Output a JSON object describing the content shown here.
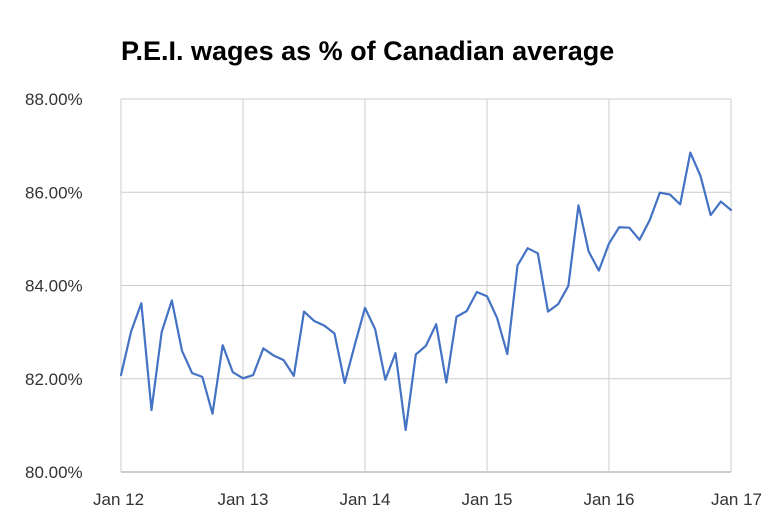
{
  "chart_data": {
    "type": "line",
    "title": "P.E.I. wages as % of Canadian average",
    "xlabel": "",
    "ylabel": "",
    "ylim": [
      80,
      88
    ],
    "y_ticks": [
      "80.00%",
      "82.00%",
      "84.00%",
      "86.00%",
      "88.00%"
    ],
    "y_tick_values": [
      80,
      82,
      84,
      86,
      88
    ],
    "x_ticks": [
      "Jan 12",
      "Jan 13",
      "Jan 14",
      "Jan 15",
      "Jan 16",
      "Jan 17"
    ],
    "x_tick_positions": [
      0,
      12,
      24,
      36,
      48,
      60
    ],
    "grid": true,
    "legend": "none",
    "series": [
      {
        "color": "#4472C4",
        "x": [
          0,
          1,
          2,
          3,
          4,
          5,
          6,
          7,
          8,
          9,
          10,
          11,
          12,
          13,
          14,
          15,
          16,
          17,
          18,
          19,
          20,
          21,
          22,
          23,
          24,
          25,
          26,
          27,
          28,
          29,
          30,
          31,
          32,
          33,
          34,
          35,
          36,
          37,
          38,
          39,
          40,
          41,
          42,
          43,
          44,
          45,
          46,
          47,
          48,
          49,
          50,
          51,
          52,
          53,
          54,
          55,
          56,
          57,
          58,
          59,
          60
        ],
        "values": [
          82.08,
          83.02,
          83.62,
          81.33,
          83.0,
          83.68,
          82.6,
          82.12,
          82.04,
          81.25,
          82.72,
          82.14,
          82.01,
          82.08,
          82.65,
          82.5,
          82.4,
          82.06,
          83.44,
          83.24,
          83.14,
          82.97,
          81.91,
          82.73,
          83.52,
          83.06,
          81.98,
          82.55,
          80.9,
          82.52,
          82.71,
          83.17,
          81.92,
          83.33,
          83.45,
          83.86,
          83.77,
          83.3,
          82.53,
          84.43,
          84.8,
          84.69,
          83.44,
          83.6,
          83.99,
          85.72,
          84.73,
          84.32,
          84.9,
          85.25,
          85.24,
          84.98,
          85.4,
          85.99,
          85.95,
          85.74,
          86.85,
          86.35,
          85.51,
          85.8,
          85.62
        ]
      }
    ]
  }
}
